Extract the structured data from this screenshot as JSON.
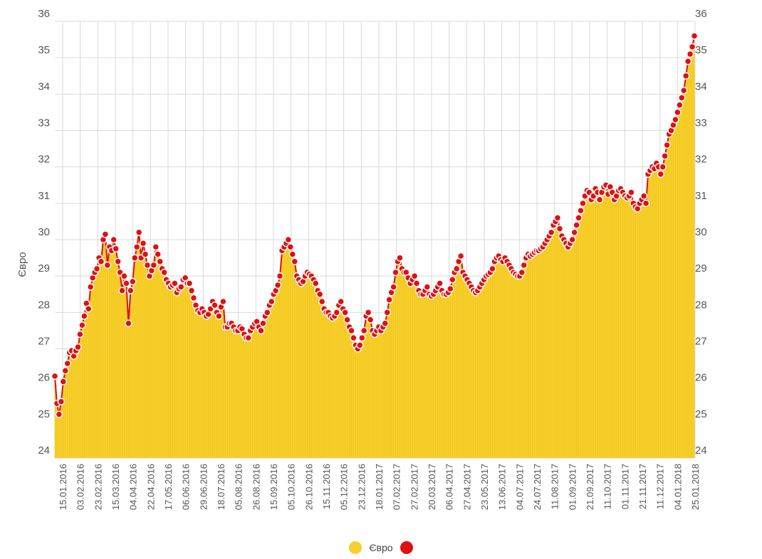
{
  "chart_data": {
    "type": "area",
    "title": "",
    "xlabel": "",
    "ylabel": "Євро",
    "ylim": [
      24,
      36
    ],
    "y_ticks": [
      24,
      25,
      26,
      27,
      28,
      29,
      30,
      31,
      32,
      33,
      34,
      35,
      36
    ],
    "grid": true,
    "legend_position": "bottom-center",
    "colors": {
      "area": "#f7cf2c",
      "line": "#e01010",
      "marker_fill": "#e01010",
      "marker_stroke": "#ffffff",
      "grid": "#d9d9d9"
    },
    "x_tick_labels": [
      "15.01.2016",
      "03.02.2016",
      "23.02.2016",
      "15.03.2016",
      "04.04.2016",
      "22.04.2016",
      "17.05.2016",
      "06.06.2016",
      "29.06.2016",
      "18.07.2016",
      "05.08.2016",
      "26.08.2016",
      "15.09.2016",
      "05.10.2016",
      "26.10.2016",
      "15.11.2016",
      "05.12.2016",
      "23.12.2016",
      "18.01.2017",
      "07.02.2017",
      "27.02.2017",
      "20.03.2017",
      "06.04.2017",
      "27.04.2017",
      "23.05.2017",
      "13.06.2017",
      "04.07.2017",
      "24.07.2017",
      "11.08.2017",
      "01.09.2017",
      "21.09.2017",
      "11.10.2017",
      "01.11.2017",
      "21.11.2017",
      "11.12.2017",
      "04.01.2018",
      "25.01.2018"
    ],
    "series": [
      {
        "name": "Євро",
        "color": "#f7cf2c",
        "kind": "area"
      },
      {
        "name": "",
        "color": "#e01010",
        "kind": "line-markers"
      }
    ],
    "values": [
      26.25,
      25.5,
      25.2,
      25.55,
      26.1,
      26.4,
      26.6,
      26.9,
      26.95,
      26.8,
      26.95,
      27.05,
      27.4,
      27.65,
      27.9,
      28.25,
      28.1,
      28.7,
      28.95,
      29.1,
      29.2,
      29.5,
      29.4,
      30.0,
      30.15,
      29.3,
      29.8,
      29.7,
      30.0,
      29.75,
      29.4,
      29.1,
      28.6,
      29.0,
      28.8,
      27.7,
      28.6,
      28.85,
      29.5,
      29.8,
      30.2,
      29.5,
      29.9,
      29.6,
      29.3,
      29.0,
      29.15,
      29.3,
      29.8,
      29.6,
      29.4,
      29.2,
      29.1,
      28.9,
      28.8,
      28.7,
      28.75,
      28.8,
      28.55,
      28.65,
      28.7,
      28.9,
      28.95,
      28.8,
      28.8,
      28.6,
      28.4,
      28.2,
      28.05,
      28.0,
      28.1,
      28.0,
      27.9,
      27.95,
      28.1,
      28.3,
      28.2,
      28.0,
      27.9,
      28.15,
      28.3,
      27.6,
      27.6,
      27.7,
      27.7,
      27.6,
      27.5,
      27.5,
      27.6,
      27.55,
      27.4,
      27.3,
      27.3,
      27.5,
      27.6,
      27.7,
      27.75,
      27.6,
      27.5,
      27.7,
      27.9,
      28.0,
      28.2,
      28.3,
      28.5,
      28.6,
      28.75,
      29.0,
      29.7,
      29.8,
      29.9,
      30.0,
      29.8,
      29.6,
      29.4,
      29.0,
      28.9,
      28.8,
      28.85,
      29.0,
      29.1,
      29.05,
      29.0,
      28.9,
      28.8,
      28.6,
      28.5,
      28.3,
      28.1,
      28.0,
      28.0,
      27.9,
      27.85,
      27.9,
      28.0,
      28.2,
      28.3,
      28.1,
      28.0,
      27.8,
      27.6,
      27.5,
      27.3,
      27.1,
      27.0,
      27.1,
      27.3,
      27.5,
      27.9,
      28.0,
      27.8,
      27.5,
      27.4,
      27.5,
      27.6,
      27.5,
      27.6,
      27.7,
      28.0,
      28.35,
      28.55,
      28.7,
      29.1,
      29.4,
      29.5,
      29.2,
      29.1,
      29.1,
      28.95,
      28.8,
      28.9,
      29.0,
      28.8,
      28.6,
      28.5,
      28.5,
      28.6,
      28.7,
      28.5,
      28.45,
      28.5,
      28.6,
      28.7,
      28.8,
      28.6,
      28.5,
      28.5,
      28.55,
      28.65,
      28.9,
      29.1,
      29.2,
      29.4,
      29.55,
      29.1,
      29.0,
      28.9,
      28.8,
      28.7,
      28.6,
      28.55,
      28.6,
      28.7,
      28.8,
      28.9,
      29.0,
      29.05,
      29.1,
      29.2,
      29.4,
      29.5,
      29.55,
      29.45,
      29.4,
      29.5,
      29.4,
      29.3,
      29.2,
      29.1,
      29.05,
      29.0,
      29.0,
      29.1,
      29.3,
      29.5,
      29.6,
      29.55,
      29.6,
      29.65,
      29.7,
      29.7,
      29.75,
      29.8,
      29.9,
      30.0,
      30.1,
      30.2,
      30.4,
      30.5,
      30.6,
      30.3,
      30.1,
      30.0,
      29.9,
      29.8,
      29.9,
      30.0,
      30.2,
      30.4,
      30.6,
      30.8,
      31.0,
      31.2,
      31.35,
      31.3,
      31.1,
      31.2,
      31.4,
      31.3,
      31.1,
      31.3,
      31.45,
      31.5,
      31.25,
      31.45,
      31.3,
      31.1,
      31.2,
      31.35,
      31.4,
      31.3,
      31.2,
      31.15,
      31.2,
      31.3,
      31.0,
      30.9,
      30.85,
      31.0,
      31.1,
      31.2,
      31.0,
      31.8,
      31.9,
      32.0,
      31.95,
      32.1,
      32.0,
      31.8,
      32.0,
      32.3,
      32.6,
      32.9,
      33.0,
      33.15,
      33.3,
      33.5,
      33.7,
      33.9,
      34.1,
      34.5,
      34.9,
      35.1,
      35.3,
      35.6
    ]
  },
  "legend": {
    "items": [
      {
        "label": "Євро",
        "color": "#f7cf2c"
      },
      {
        "label": "",
        "color": "#e01010"
      }
    ]
  }
}
